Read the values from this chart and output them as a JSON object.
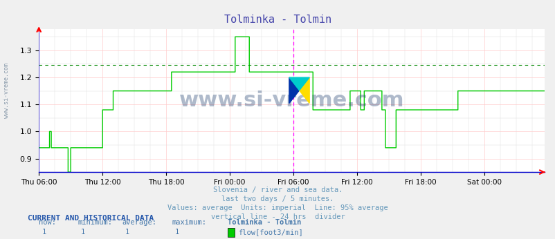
{
  "title": "Tolminka - Tolmin",
  "title_color": "#4444aa",
  "bg_color": "#f0f0f0",
  "plot_bg_color": "#ffffff",
  "x_labels": [
    "Thu 06:00",
    "Thu 12:00",
    "Thu 18:00",
    "Fri 00:00",
    "Fri 06:00",
    "Fri 12:00",
    "Fri 18:00",
    "Sat 00:00"
  ],
  "x_positions": [
    0,
    72,
    144,
    216,
    288,
    360,
    432,
    504
  ],
  "ylim": [
    0.85,
    1.38
  ],
  "yticks": [
    0.9,
    1.0,
    1.1,
    1.2,
    1.3
  ],
  "average_line": 1.245,
  "vertical_line_x": 288,
  "line_color": "#00cc00",
  "avg_line_color": "#008800",
  "vertical_line_color": "#ff00ff",
  "grid_color_major": "#ffcccc",
  "grid_color_minor": "#eeeeee",
  "watermark": "www.si-vreme.com",
  "subtitle_lines": [
    "Slovenia / river and sea data.",
    "last two days / 5 minutes.",
    "Values: average  Units: imperial  Line: 95% average",
    "vertical line - 24 hrs  divider"
  ],
  "subtitle_color": "#6699bb",
  "bottom_header": "CURRENT AND HISTORICAL DATA",
  "bottom_labels": [
    "now:",
    "minimum:",
    "average:",
    "maximum:",
    "Tolminka - Tolmin"
  ],
  "bottom_values": [
    "1",
    "1",
    "1",
    "1"
  ],
  "bottom_legend_label": "flow[foot3/min]",
  "bottom_color": "#4477aa",
  "total_points": 577,
  "data_y": [
    0.94,
    0.94,
    0.94,
    0.94,
    0.94,
    0.94,
    0.94,
    0.94,
    0.94,
    0.94,
    0.94,
    0.94,
    1.0,
    1.0,
    0.94,
    0.94,
    0.94,
    0.94,
    0.94,
    0.94,
    0.94,
    0.94,
    0.94,
    0.94,
    0.94,
    0.94,
    0.94,
    0.94,
    0.94,
    0.94,
    0.94,
    0.94,
    0.94,
    0.85,
    0.85,
    0.85,
    0.94,
    0.94,
    0.94,
    0.94,
    0.94,
    0.94,
    0.94,
    0.94,
    0.94,
    0.94,
    0.94,
    0.94,
    0.94,
    0.94,
    0.94,
    0.94,
    0.94,
    0.94,
    0.94,
    0.94,
    0.94,
    0.94,
    0.94,
    0.94,
    0.94,
    0.94,
    0.94,
    0.94,
    0.94,
    0.94,
    0.94,
    0.94,
    0.94,
    0.94,
    0.94,
    0.94,
    1.08,
    1.08,
    1.08,
    1.08,
    1.08,
    1.08,
    1.08,
    1.08,
    1.08,
    1.08,
    1.08,
    1.08,
    1.15,
    1.15,
    1.15,
    1.15,
    1.15,
    1.15,
    1.15,
    1.15,
    1.15,
    1.15,
    1.15,
    1.15,
    1.15,
    1.15,
    1.15,
    1.15,
    1.15,
    1.15,
    1.15,
    1.15,
    1.15,
    1.15,
    1.15,
    1.15,
    1.15,
    1.15,
    1.15,
    1.15,
    1.15,
    1.15,
    1.15,
    1.15,
    1.15,
    1.15,
    1.15,
    1.15,
    1.15,
    1.15,
    1.15,
    1.15,
    1.15,
    1.15,
    1.15,
    1.15,
    1.15,
    1.15,
    1.15,
    1.15,
    1.15,
    1.15,
    1.15,
    1.15,
    1.15,
    1.15,
    1.15,
    1.15,
    1.15,
    1.15,
    1.15,
    1.15,
    1.15,
    1.15,
    1.15,
    1.15,
    1.15,
    1.15,
    1.22,
    1.22,
    1.22,
    1.22,
    1.22,
    1.22,
    1.22,
    1.22,
    1.22,
    1.22,
    1.22,
    1.22,
    1.22,
    1.22,
    1.22,
    1.22,
    1.22,
    1.22,
    1.22,
    1.22,
    1.22,
    1.22,
    1.22,
    1.22,
    1.22,
    1.22,
    1.22,
    1.22,
    1.22,
    1.22,
    1.22,
    1.22,
    1.22,
    1.22,
    1.22,
    1.22,
    1.22,
    1.22,
    1.22,
    1.22,
    1.22,
    1.22,
    1.22,
    1.22,
    1.22,
    1.22,
    1.22,
    1.22,
    1.22,
    1.22,
    1.22,
    1.22,
    1.22,
    1.22,
    1.22,
    1.22,
    1.22,
    1.22,
    1.22,
    1.22,
    1.22,
    1.22,
    1.22,
    1.22,
    1.22,
    1.22,
    1.22,
    1.22,
    1.22,
    1.22,
    1.22,
    1.22,
    1.35,
    1.35,
    1.35,
    1.35,
    1.35,
    1.35,
    1.35,
    1.35,
    1.35,
    1.35,
    1.35,
    1.35,
    1.35,
    1.35,
    1.35,
    1.35,
    1.22,
    1.22,
    1.22,
    1.22,
    1.22,
    1.22,
    1.22,
    1.22,
    1.22,
    1.22,
    1.22,
    1.22,
    1.22,
    1.22,
    1.22,
    1.22,
    1.22,
    1.22,
    1.22,
    1.22,
    1.22,
    1.22,
    1.22,
    1.22,
    1.22,
    1.22,
    1.22,
    1.22,
    1.22,
    1.22,
    1.22,
    1.22,
    1.22,
    1.22,
    1.22,
    1.22,
    1.22,
    1.22,
    1.22,
    1.22,
    1.22,
    1.22,
    1.22,
    1.22,
    1.22,
    1.22,
    1.22,
    1.22,
    1.22,
    1.22,
    1.22,
    1.22,
    1.22,
    1.22,
    1.22,
    1.22,
    1.22,
    1.22,
    1.22,
    1.22,
    1.22,
    1.22,
    1.22,
    1.22,
    1.22,
    1.22,
    1.22,
    1.22,
    1.22,
    1.22,
    1.22,
    1.22,
    1.08,
    1.08,
    1.08,
    1.08,
    1.08,
    1.08,
    1.08,
    1.08,
    1.08,
    1.08,
    1.08,
    1.08,
    1.08,
    1.08,
    1.08,
    1.08,
    1.08,
    1.08,
    1.08,
    1.08,
    1.08,
    1.08,
    1.08,
    1.08,
    1.08,
    1.08,
    1.08,
    1.08,
    1.08,
    1.08,
    1.08,
    1.08,
    1.08,
    1.08,
    1.08,
    1.08,
    1.08,
    1.08,
    1.08,
    1.08,
    1.08,
    1.08,
    1.15,
    1.15,
    1.15,
    1.15,
    1.15,
    1.15,
    1.15,
    1.15,
    1.15,
    1.15,
    1.15,
    1.15,
    1.08,
    1.08,
    1.08,
    1.08,
    1.15,
    1.15,
    1.15,
    1.15,
    1.15,
    1.15,
    1.15,
    1.15,
    1.15,
    1.15,
    1.15,
    1.15,
    1.15,
    1.15,
    1.15,
    1.15,
    1.15,
    1.15,
    1.15,
    1.15,
    1.08,
    1.08,
    1.08,
    1.08,
    0.94,
    0.94,
    0.94,
    0.94,
    0.94,
    0.94,
    0.94,
    0.94,
    0.94,
    0.94,
    0.94,
    0.94,
    1.08,
    1.08,
    1.08,
    1.08,
    1.08,
    1.08,
    1.08,
    1.08,
    1.08,
    1.08,
    1.08,
    1.08,
    1.08,
    1.08,
    1.08,
    1.08,
    1.08,
    1.08,
    1.08,
    1.08,
    1.08,
    1.08,
    1.08,
    1.08,
    1.08,
    1.08,
    1.08,
    1.08,
    1.08,
    1.08,
    1.08,
    1.08,
    1.08,
    1.08,
    1.08,
    1.08,
    1.08,
    1.08,
    1.08,
    1.08,
    1.08,
    1.08,
    1.08,
    1.08,
    1.08,
    1.08,
    1.08,
    1.08,
    1.08,
    1.08,
    1.08,
    1.08,
    1.08,
    1.08,
    1.08,
    1.08,
    1.08,
    1.08,
    1.08,
    1.08,
    1.08,
    1.08,
    1.08,
    1.08,
    1.08,
    1.08,
    1.08,
    1.08,
    1.08,
    1.08,
    1.15,
    1.15,
    1.15,
    1.15,
    1.15,
    1.15,
    1.15,
    1.15,
    1.15,
    1.15,
    1.15,
    1.15,
    1.15,
    1.15,
    1.15,
    1.15,
    1.15,
    1.15,
    1.15,
    1.15,
    1.15,
    1.15,
    1.15,
    1.15,
    1.15,
    1.15,
    1.15,
    1.15,
    1.15,
    1.15,
    1.15,
    1.15,
    1.15,
    1.15,
    1.15,
    1.15,
    1.15,
    1.15,
    1.15,
    1.15,
    1.15,
    1.15,
    1.15,
    1.15,
    1.15,
    1.15,
    1.15,
    1.15,
    1.15,
    1.15,
    1.15,
    1.15,
    1.15,
    1.15,
    1.15,
    1.15,
    1.15,
    1.15,
    1.15,
    1.15,
    1.15,
    1.15,
    1.15,
    1.15,
    1.15,
    1.15,
    1.15,
    1.15,
    1.15,
    1.15,
    1.15,
    1.15,
    1.15,
    1.15,
    1.15,
    1.15,
    1.15,
    1.15,
    1.15,
    1.15,
    1.15,
    1.15,
    1.15,
    1.15,
    1.15,
    1.15,
    1.15,
    1.15,
    1.15,
    1.15,
    1.15,
    1.15,
    1.15,
    1.15,
    1.15,
    1.15,
    1.15,
    1.15,
    1.15
  ]
}
